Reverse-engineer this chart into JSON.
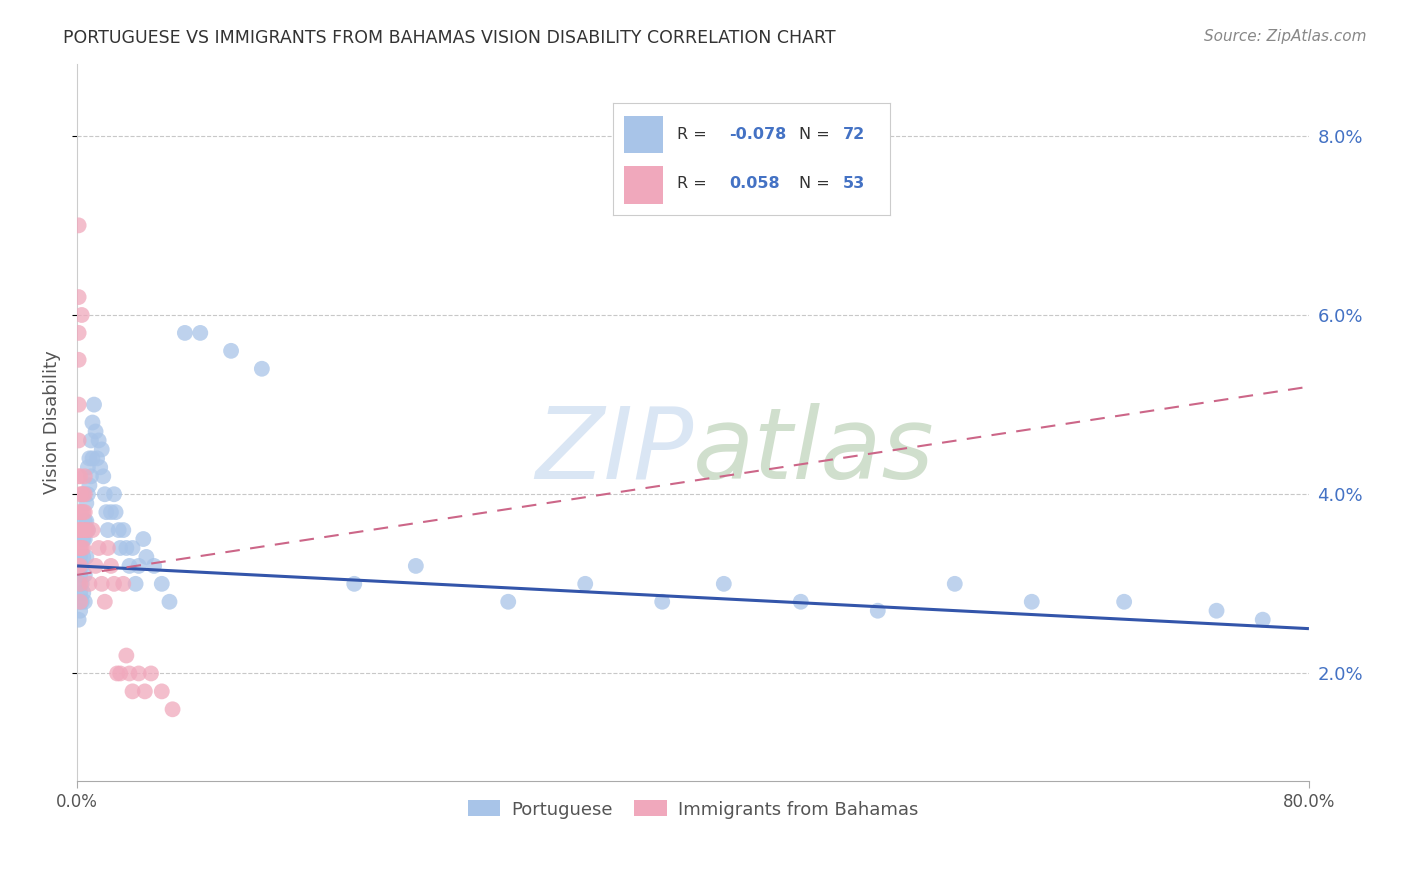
{
  "title": "PORTUGUESE VS IMMIGRANTS FROM BAHAMAS VISION DISABILITY CORRELATION CHART",
  "source": "Source: ZipAtlas.com",
  "ylabel": "Vision Disability",
  "watermark_zip": "ZIP",
  "watermark_atlas": "atlas",
  "xlim": [
    0.0,
    0.8
  ],
  "ylim": [
    0.008,
    0.088
  ],
  "ytick_vals": [
    0.02,
    0.04,
    0.06,
    0.08
  ],
  "ytick_labels": [
    "2.0%",
    "4.0%",
    "6.0%",
    "8.0%"
  ],
  "series1_label": "Portuguese",
  "series1_R": "-0.078",
  "series1_N": "72",
  "series1_color": "#a8c4e8",
  "series1_line_color": "#3355aa",
  "series1_line_start_y": 0.032,
  "series1_line_end_y": 0.025,
  "series2_label": "Immigrants from Bahamas",
  "series2_R": "0.058",
  "series2_N": "53",
  "series2_color": "#f0a8bc",
  "series2_line_color": "#cc6688",
  "series2_line_start_y": 0.031,
  "series2_line_end_y": 0.052,
  "portuguese_x": [
    0.001,
    0.001,
    0.001,
    0.002,
    0.002,
    0.002,
    0.002,
    0.003,
    0.003,
    0.003,
    0.004,
    0.004,
    0.004,
    0.005,
    0.005,
    0.005,
    0.005,
    0.006,
    0.006,
    0.006,
    0.007,
    0.007,
    0.007,
    0.008,
    0.008,
    0.009,
    0.009,
    0.01,
    0.01,
    0.011,
    0.012,
    0.013,
    0.014,
    0.015,
    0.016,
    0.017,
    0.018,
    0.019,
    0.02,
    0.022,
    0.024,
    0.025,
    0.027,
    0.028,
    0.03,
    0.032,
    0.034,
    0.036,
    0.038,
    0.04,
    0.043,
    0.045,
    0.05,
    0.055,
    0.06,
    0.07,
    0.08,
    0.1,
    0.12,
    0.18,
    0.22,
    0.28,
    0.33,
    0.38,
    0.42,
    0.47,
    0.52,
    0.57,
    0.62,
    0.68,
    0.74,
    0.77
  ],
  "portuguese_y": [
    0.03,
    0.028,
    0.026,
    0.033,
    0.031,
    0.029,
    0.027,
    0.032,
    0.03,
    0.028,
    0.035,
    0.033,
    0.029,
    0.037,
    0.035,
    0.031,
    0.028,
    0.039,
    0.037,
    0.033,
    0.043,
    0.04,
    0.036,
    0.044,
    0.041,
    0.046,
    0.042,
    0.048,
    0.044,
    0.05,
    0.047,
    0.044,
    0.046,
    0.043,
    0.045,
    0.042,
    0.04,
    0.038,
    0.036,
    0.038,
    0.04,
    0.038,
    0.036,
    0.034,
    0.036,
    0.034,
    0.032,
    0.034,
    0.03,
    0.032,
    0.035,
    0.033,
    0.032,
    0.03,
    0.028,
    0.058,
    0.058,
    0.056,
    0.054,
    0.03,
    0.032,
    0.028,
    0.03,
    0.028,
    0.03,
    0.028,
    0.027,
    0.03,
    0.028,
    0.028,
    0.027,
    0.026
  ],
  "bahamas_x": [
    0.001,
    0.001,
    0.001,
    0.001,
    0.001,
    0.001,
    0.001,
    0.001,
    0.001,
    0.001,
    0.001,
    0.002,
    0.002,
    0.002,
    0.002,
    0.002,
    0.002,
    0.002,
    0.002,
    0.003,
    0.003,
    0.003,
    0.003,
    0.003,
    0.004,
    0.004,
    0.004,
    0.004,
    0.005,
    0.005,
    0.005,
    0.006,
    0.007,
    0.008,
    0.01,
    0.012,
    0.014,
    0.016,
    0.018,
    0.02,
    0.022,
    0.024,
    0.026,
    0.028,
    0.03,
    0.032,
    0.034,
    0.036,
    0.04,
    0.044,
    0.048,
    0.055,
    0.062
  ],
  "bahamas_y": [
    0.07,
    0.062,
    0.058,
    0.055,
    0.05,
    0.046,
    0.042,
    0.038,
    0.036,
    0.034,
    0.032,
    0.042,
    0.04,
    0.038,
    0.036,
    0.034,
    0.032,
    0.03,
    0.028,
    0.06,
    0.04,
    0.038,
    0.036,
    0.034,
    0.04,
    0.038,
    0.036,
    0.034,
    0.042,
    0.04,
    0.038,
    0.036,
    0.036,
    0.03,
    0.036,
    0.032,
    0.034,
    0.03,
    0.028,
    0.034,
    0.032,
    0.03,
    0.02,
    0.02,
    0.03,
    0.022,
    0.02,
    0.018,
    0.02,
    0.018,
    0.02,
    0.018,
    0.016
  ]
}
